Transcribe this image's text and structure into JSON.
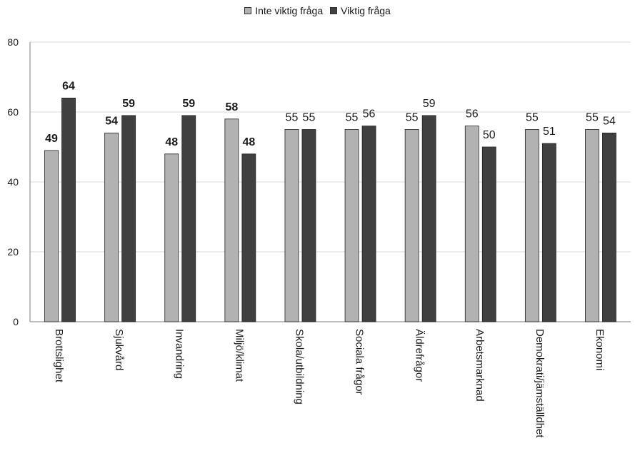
{
  "chart_data": {
    "type": "bar",
    "categories": [
      "Brottslighet",
      "Sjukvård",
      "Invandring",
      "Miljö/klimat",
      "Skola/utbildning",
      "Sociala frågor",
      "Äldrefrågor",
      "Arbetsmarknad",
      "Demokrati/jämställdhet",
      "Ekonomi"
    ],
    "series": [
      {
        "name": "Inte viktig fråga",
        "color": "#b2b2b2",
        "values": [
          49,
          54,
          48,
          58,
          55,
          55,
          55,
          56,
          55,
          55
        ],
        "label_bold": [
          true,
          true,
          true,
          true,
          false,
          false,
          false,
          false,
          false,
          false
        ]
      },
      {
        "name": "Viktig fråga",
        "color": "#404040",
        "values": [
          64,
          59,
          59,
          48,
          55,
          56,
          59,
          50,
          51,
          54
        ],
        "label_bold": [
          true,
          true,
          true,
          true,
          false,
          false,
          false,
          false,
          false,
          false
        ]
      }
    ],
    "yticks": [
      0,
      20,
      40,
      60,
      80
    ],
    "ylim": [
      0,
      80
    ],
    "grid": true,
    "legend_position": "top-center"
  }
}
